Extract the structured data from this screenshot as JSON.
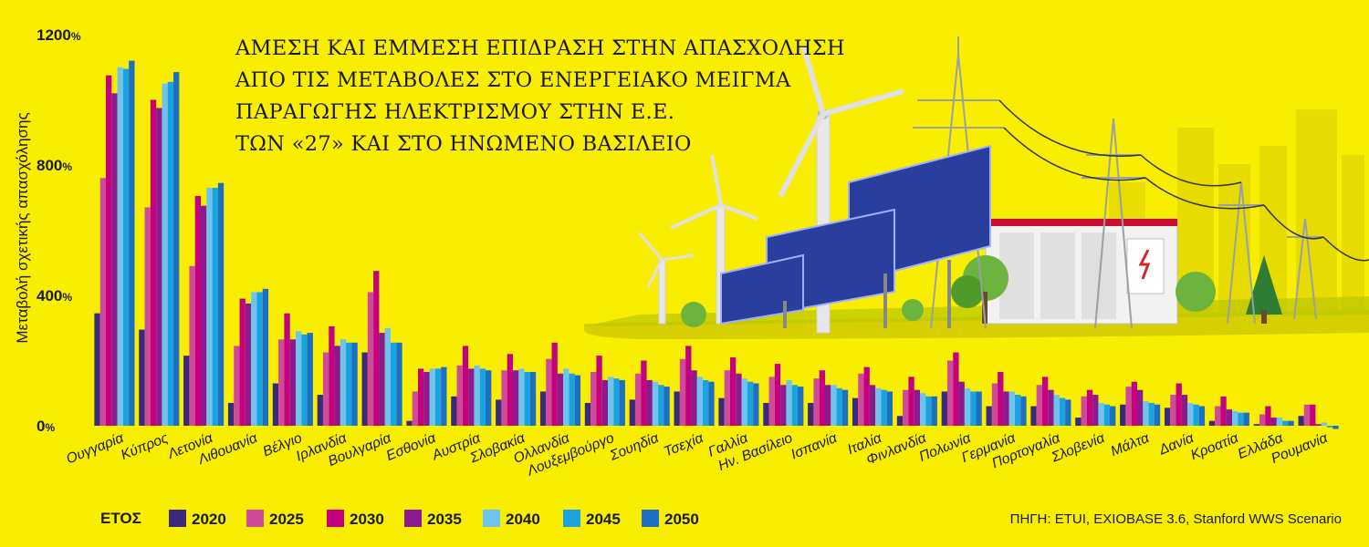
{
  "chart_data": {
    "type": "bar",
    "title_lines": [
      "ΑΜΕΣΗ ΚΑΙ ΕΜΜΕΣΗ ΕΠΙΔΡΑΣΗ ΣΤΗΝ ΑΠΑΣΧΟΛΗΣΗ",
      "ΑΠΟ ΤΙΣ ΜΕΤΑΒΟΛΕΣ ΣΤΟ ΕΝΕΡΓΕΙΑΚΟ ΜΕΙΓΜΑ",
      "ΠΑΡΑΓΩΓΗΣ ΗΛΕΚΤΡΙΣΜΟΥ ΣΤΗΝ Ε.Ε.",
      "ΤΩΝ «27»  ΚΑΙ ΣΤΟ ΗΝΩΜΕΝΟ ΒΑΣΙΛΕΙΟ"
    ],
    "ylabel": "Μεταβολή σχετικής απασχόλησης",
    "ylim": [
      0,
      1200
    ],
    "yticks": [
      {
        "value": 0,
        "num": "0",
        "unit": "%"
      },
      {
        "value": 400,
        "num": "400",
        "unit": "%"
      },
      {
        "value": 800,
        "num": "800",
        "unit": "%"
      },
      {
        "value": 1200,
        "num": "1200",
        "unit": "%"
      }
    ],
    "legend_title": "ΕΤΟΣ",
    "legend_position": "bottom-left",
    "source": "ΠΗΓΗ: ETUI, EXIOBASE 3.6, Stanford WWS Scenario",
    "categories": [
      "Ουγγαρία",
      "Κύπρος",
      "Λετονία",
      "Λιθουανία",
      "Βέλγιο",
      "Ιρλανδία",
      "Βουλγαρία",
      "Εσθονία",
      "Αυστρία",
      "Σλοβακία",
      "Ολλανδία",
      "Λουξεμβούργο",
      "Σουηδία",
      "Τσεχία",
      "Γαλλία",
      "Ην. Βασίλειο",
      "Ισπανία",
      "Ιταλία",
      "Φινλανδία",
      "Πολωνία",
      "Γερμανία",
      "Πορτογαλία",
      "Σλοβενία",
      "Μάλτα",
      "Δανία",
      "Κροατία",
      "Ελλάδα",
      "Ρουμανία"
    ],
    "series": [
      {
        "name": "2020",
        "color": "#3a2a7c",
        "values": [
          345,
          295,
          215,
          70,
          130,
          95,
          225,
          15,
          90,
          80,
          105,
          70,
          80,
          105,
          85,
          70,
          70,
          85,
          30,
          105,
          60,
          60,
          25,
          65,
          55,
          15,
          5,
          30
        ]
      },
      {
        "name": "2025",
        "color": "#d04a9b",
        "values": [
          760,
          670,
          490,
          245,
          265,
          225,
          410,
          105,
          185,
          170,
          205,
          165,
          160,
          205,
          170,
          150,
          145,
          160,
          110,
          200,
          130,
          125,
          90,
          120,
          95,
          60,
          35,
          65
        ]
      },
      {
        "name": "2030",
        "color": "#c4007e",
        "values": [
          1075,
          1000,
          705,
          390,
          345,
          305,
          475,
          175,
          245,
          220,
          255,
          215,
          200,
          245,
          210,
          190,
          170,
          180,
          150,
          225,
          165,
          150,
          110,
          135,
          130,
          90,
          60,
          65
        ]
      },
      {
        "name": "2035",
        "color": "#8b1a8e",
        "values": [
          1020,
          975,
          675,
          375,
          265,
          245,
          285,
          165,
          175,
          170,
          160,
          140,
          140,
          170,
          160,
          125,
          125,
          125,
          110,
          135,
          105,
          110,
          95,
          110,
          95,
          50,
          25,
          5
        ]
      },
      {
        "name": "2040",
        "color": "#6ec4ee",
        "values": [
          1100,
          1050,
          730,
          410,
          290,
          265,
          300,
          175,
          185,
          175,
          175,
          150,
          135,
          150,
          145,
          140,
          125,
          115,
          100,
          115,
          105,
          95,
          70,
          75,
          70,
          45,
          25,
          10
        ]
      },
      {
        "name": "2045",
        "color": "#1aa3e0",
        "values": [
          1095,
          1055,
          730,
          410,
          280,
          255,
          255,
          175,
          175,
          165,
          160,
          145,
          125,
          140,
          135,
          125,
          115,
          110,
          90,
          105,
          95,
          85,
          65,
          70,
          65,
          40,
          15,
          -5
        ]
      },
      {
        "name": "2050",
        "color": "#1d6fc2",
        "values": [
          1120,
          1085,
          745,
          420,
          285,
          255,
          255,
          180,
          170,
          165,
          155,
          140,
          120,
          135,
          130,
          120,
          110,
          105,
          90,
          105,
          90,
          80,
          60,
          65,
          60,
          40,
          15,
          -10
        ]
      }
    ]
  }
}
